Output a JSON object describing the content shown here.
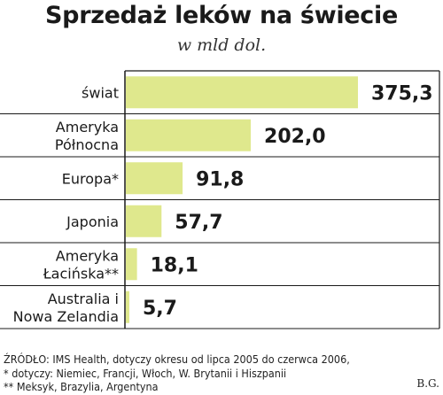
{
  "chart_data": {
    "type": "bar",
    "orientation": "horizontal",
    "title": "Sprzedaż leków na świecie",
    "subtitle": "w mld dol.",
    "categories": [
      [
        "świat"
      ],
      [
        "Ameryka",
        "Północna"
      ],
      [
        "Europa*"
      ],
      [
        "Japonia"
      ],
      [
        "Ameryka",
        "Łacińska**"
      ],
      [
        "Australia i",
        "Nowa Zelandia"
      ]
    ],
    "values": [
      375.3,
      202.0,
      91.8,
      57.7,
      18.1,
      5.7
    ],
    "value_labels": [
      "375,3",
      "202,0",
      "91,8",
      "57,7",
      "18,1",
      "5,7"
    ],
    "xlim": [
      0,
      375.3
    ],
    "grid": false,
    "bar_color": "#dfe88d",
    "frame_color": "#1a1a1a"
  },
  "footer": {
    "source": "ŹRÓDŁO: IMS Health, dotyczy okresu od lipca 2005 do czerwca 2006,",
    "note1": "* dotyczy: Niemiec, Francji, Włoch, W. Brytanii i Hiszpanii",
    "note2": "** Meksyk, Brazylia, Argentyna",
    "credit": "B.G."
  }
}
